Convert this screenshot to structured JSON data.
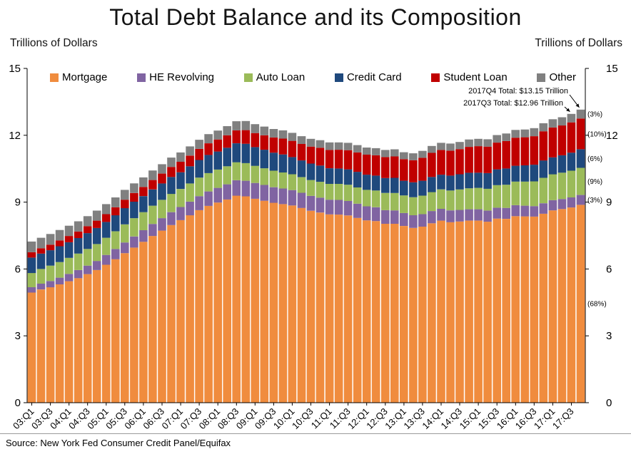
{
  "axis_titles": {
    "left": "Trillions of Dollars",
    "right": "Trillions of Dollars"
  },
  "source": "Source: New York Fed Consumer Credit Panel/Equifax",
  "annotations": [
    {
      "text": "2017Q4 Total: $13.15 Trillion",
      "points_to": "17:Q4"
    },
    {
      "text": "2017Q3 Total: $12.96 Trillion",
      "points_to": "17:Q3"
    }
  ],
  "chart_data": {
    "type": "bar",
    "stacked": true,
    "title": "Total Debt Balance and its Composition",
    "xlabel": "",
    "ylabel": "Trillions of Dollars",
    "ylim": [
      0,
      15
    ],
    "yticks": [
      0,
      3,
      6,
      9,
      12,
      15
    ],
    "x_tick_step": 2,
    "grid": false,
    "legend_position": "top-inside",
    "categories": [
      "03:Q1",
      "03:Q2",
      "03:Q3",
      "03:Q4",
      "04:Q1",
      "04:Q2",
      "04:Q3",
      "04:Q4",
      "05:Q1",
      "05:Q2",
      "05:Q3",
      "05:Q4",
      "06:Q1",
      "06:Q2",
      "06:Q3",
      "06:Q4",
      "07:Q1",
      "07:Q2",
      "07:Q3",
      "07:Q4",
      "08:Q1",
      "08:Q2",
      "08:Q3",
      "08:Q4",
      "09:Q1",
      "09:Q2",
      "09:Q3",
      "09:Q4",
      "10:Q1",
      "10:Q2",
      "10:Q3",
      "10:Q4",
      "11:Q1",
      "11:Q2",
      "11:Q3",
      "11:Q4",
      "12:Q1",
      "12:Q2",
      "12:Q3",
      "12:Q4",
      "13:Q1",
      "13:Q2",
      "13:Q3",
      "13:Q4",
      "14:Q1",
      "14:Q2",
      "14:Q3",
      "14:Q4",
      "15:Q1",
      "15:Q2",
      "15:Q3",
      "15:Q4",
      "16:Q1",
      "16:Q2",
      "16:Q3",
      "16:Q4",
      "17:Q1",
      "17:Q2",
      "17:Q3",
      "17:Q4"
    ],
    "series": [
      {
        "name": "Mortgage",
        "color": "#F08C3E",
        "share_label": "(68%)",
        "values": [
          4.94,
          5.08,
          5.18,
          5.31,
          5.45,
          5.59,
          5.77,
          5.95,
          6.19,
          6.44,
          6.71,
          6.96,
          7.22,
          7.48,
          7.72,
          7.97,
          8.19,
          8.41,
          8.64,
          8.83,
          8.98,
          9.12,
          9.29,
          9.26,
          9.15,
          9.06,
          8.97,
          8.91,
          8.85,
          8.74,
          8.61,
          8.53,
          8.45,
          8.44,
          8.4,
          8.29,
          8.18,
          8.15,
          8.03,
          8.03,
          7.93,
          7.84,
          7.9,
          8.05,
          8.17,
          8.1,
          8.13,
          8.17,
          8.17,
          8.12,
          8.26,
          8.25,
          8.37,
          8.36,
          8.35,
          8.48,
          8.63,
          8.69,
          8.76,
          8.88
        ]
      },
      {
        "name": "HE Revolving",
        "color": "#8064A2",
        "share_label": "(3%)",
        "values": [
          0.24,
          0.26,
          0.28,
          0.3,
          0.33,
          0.36,
          0.38,
          0.41,
          0.44,
          0.46,
          0.48,
          0.5,
          0.52,
          0.54,
          0.56,
          0.58,
          0.59,
          0.61,
          0.63,
          0.65,
          0.66,
          0.68,
          0.69,
          0.7,
          0.71,
          0.71,
          0.7,
          0.7,
          0.69,
          0.68,
          0.67,
          0.67,
          0.66,
          0.66,
          0.65,
          0.64,
          0.63,
          0.62,
          0.61,
          0.6,
          0.58,
          0.57,
          0.56,
          0.55,
          0.53,
          0.53,
          0.52,
          0.51,
          0.51,
          0.5,
          0.49,
          0.49,
          0.49,
          0.48,
          0.47,
          0.47,
          0.46,
          0.45,
          0.45,
          0.44
        ]
      },
      {
        "name": "Auto Loan",
        "color": "#9BBB59",
        "share_label": "(9%)",
        "values": [
          0.64,
          0.66,
          0.69,
          0.7,
          0.72,
          0.74,
          0.75,
          0.76,
          0.77,
          0.79,
          0.81,
          0.82,
          0.81,
          0.82,
          0.82,
          0.82,
          0.81,
          0.82,
          0.83,
          0.82,
          0.82,
          0.81,
          0.81,
          0.79,
          0.77,
          0.75,
          0.74,
          0.72,
          0.71,
          0.7,
          0.71,
          0.71,
          0.71,
          0.72,
          0.73,
          0.73,
          0.74,
          0.75,
          0.77,
          0.78,
          0.79,
          0.81,
          0.83,
          0.85,
          0.87,
          0.89,
          0.92,
          0.94,
          0.96,
          0.98,
          1.01,
          1.04,
          1.06,
          1.08,
          1.11,
          1.14,
          1.16,
          1.18,
          1.2,
          1.22
        ]
      },
      {
        "name": "Credit Card",
        "color": "#1F497D",
        "share_label": "(6%)",
        "values": [
          0.69,
          0.69,
          0.69,
          0.71,
          0.7,
          0.7,
          0.71,
          0.72,
          0.71,
          0.72,
          0.73,
          0.74,
          0.72,
          0.73,
          0.74,
          0.76,
          0.75,
          0.77,
          0.79,
          0.82,
          0.81,
          0.83,
          0.85,
          0.87,
          0.84,
          0.83,
          0.81,
          0.81,
          0.77,
          0.75,
          0.74,
          0.73,
          0.7,
          0.69,
          0.69,
          0.7,
          0.68,
          0.67,
          0.67,
          0.68,
          0.66,
          0.67,
          0.67,
          0.68,
          0.66,
          0.67,
          0.68,
          0.7,
          0.68,
          0.7,
          0.71,
          0.73,
          0.71,
          0.73,
          0.75,
          0.78,
          0.76,
          0.78,
          0.81,
          0.83
        ]
      },
      {
        "name": "Student Loan",
        "color": "#C00000",
        "share_label": "(10%)",
        "values": [
          0.24,
          0.24,
          0.25,
          0.26,
          0.28,
          0.29,
          0.31,
          0.33,
          0.35,
          0.36,
          0.38,
          0.39,
          0.41,
          0.42,
          0.44,
          0.45,
          0.47,
          0.48,
          0.5,
          0.52,
          0.54,
          0.56,
          0.58,
          0.61,
          0.63,
          0.65,
          0.68,
          0.71,
          0.73,
          0.74,
          0.76,
          0.8,
          0.82,
          0.84,
          0.86,
          0.87,
          0.9,
          0.91,
          0.94,
          0.96,
          0.97,
          0.99,
          1.03,
          1.08,
          1.11,
          1.12,
          1.13,
          1.16,
          1.19,
          1.19,
          1.2,
          1.23,
          1.26,
          1.26,
          1.28,
          1.31,
          1.34,
          1.34,
          1.36,
          1.38
        ]
      },
      {
        "name": "Other",
        "color": "#808080",
        "share_label": "(3%)",
        "values": [
          0.48,
          0.47,
          0.48,
          0.47,
          0.46,
          0.46,
          0.45,
          0.45,
          0.45,
          0.44,
          0.44,
          0.43,
          0.43,
          0.43,
          0.42,
          0.42,
          0.42,
          0.41,
          0.41,
          0.41,
          0.4,
          0.41,
          0.41,
          0.41,
          0.4,
          0.39,
          0.38,
          0.37,
          0.36,
          0.35,
          0.35,
          0.34,
          0.34,
          0.33,
          0.33,
          0.33,
          0.32,
          0.32,
          0.32,
          0.32,
          0.31,
          0.31,
          0.31,
          0.31,
          0.32,
          0.32,
          0.32,
          0.33,
          0.33,
          0.33,
          0.34,
          0.34,
          0.35,
          0.35,
          0.36,
          0.36,
          0.37,
          0.37,
          0.38,
          0.4
        ]
      }
    ]
  }
}
